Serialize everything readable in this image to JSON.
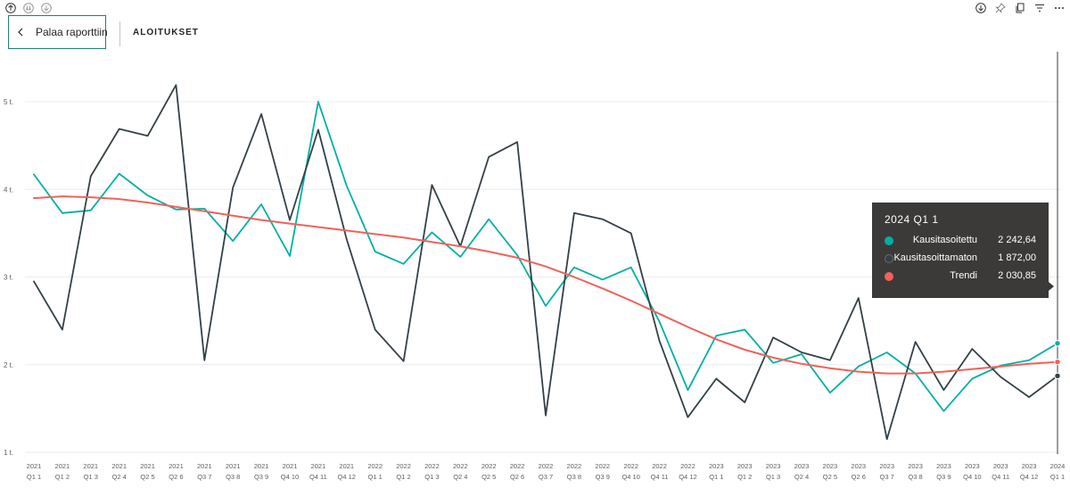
{
  "header": {
    "back_label": "Palaa raporttiin",
    "title": "ALOITUKSET"
  },
  "toolbar_icons": [
    "up-arrow-icon",
    "drill-down-icon",
    "expand-hierarchy-icon",
    "download-icon",
    "pin-icon",
    "copy-icon",
    "filter-icon",
    "more-icon"
  ],
  "tooltip": {
    "title": "2024 Q1 1",
    "rows": [
      {
        "name": "Kausitasoitettu",
        "value": "2 242,64",
        "color": "#00b0a3"
      },
      {
        "name": "Kausitasoittamaton",
        "value": "1 872,00",
        "color": "#334148"
      },
      {
        "name": "Trendi",
        "value": "2 030,85",
        "color": "#f0625b"
      }
    ]
  },
  "chart_data": {
    "type": "line",
    "title": "",
    "xlabel": "",
    "ylabel": "",
    "ylim": [
      1000,
      5300
    ],
    "y_ticks": [
      1000,
      2000,
      3000,
      4000,
      5000
    ],
    "y_tick_labels": [
      "1 t.",
      "2 t.",
      "3 t.",
      "4 t.",
      "5 t."
    ],
    "grid": true,
    "x": [
      [
        "2021",
        "Q1 1"
      ],
      [
        "2021",
        "Q1 2"
      ],
      [
        "2021",
        "Q1 3"
      ],
      [
        "2021",
        "Q2 4"
      ],
      [
        "2021",
        "Q2 5"
      ],
      [
        "2021",
        "Q2 6"
      ],
      [
        "2021",
        "Q3 7"
      ],
      [
        "2021",
        "Q3 8"
      ],
      [
        "2021",
        "Q3 9"
      ],
      [
        "2021",
        "Q4 10"
      ],
      [
        "2021",
        "Q4 11"
      ],
      [
        "2021",
        "Q4 12"
      ],
      [
        "2022",
        "Q1 1"
      ],
      [
        "2022",
        "Q1 2"
      ],
      [
        "2022",
        "Q1 3"
      ],
      [
        "2022",
        "Q2 4"
      ],
      [
        "2022",
        "Q2 5"
      ],
      [
        "2022",
        "Q2 6"
      ],
      [
        "2022",
        "Q3 7"
      ],
      [
        "2022",
        "Q3 8"
      ],
      [
        "2022",
        "Q3 9"
      ],
      [
        "2022",
        "Q4 10"
      ],
      [
        "2022",
        "Q4 11"
      ],
      [
        "2022",
        "Q4 12"
      ],
      [
        "2023",
        "Q1 1"
      ],
      [
        "2023",
        "Q1 2"
      ],
      [
        "2023",
        "Q1 3"
      ],
      [
        "2023",
        "Q2 4"
      ],
      [
        "2023",
        "Q2 5"
      ],
      [
        "2023",
        "Q2 6"
      ],
      [
        "2023",
        "Q3 7"
      ],
      [
        "2023",
        "Q3 8"
      ],
      [
        "2023",
        "Q3 9"
      ],
      [
        "2023",
        "Q4 10"
      ],
      [
        "2023",
        "Q4 11"
      ],
      [
        "2023",
        "Q4 12"
      ],
      [
        "2024",
        "Q1 1"
      ]
    ],
    "series": [
      {
        "name": "Kausitasoitettu",
        "color": "#00b0a3",
        "values": [
          4170,
          3730,
          3760,
          4180,
          3930,
          3770,
          3780,
          3410,
          3830,
          3240,
          5000,
          4040,
          3290,
          3150,
          3510,
          3230,
          3660,
          3250,
          2670,
          3110,
          2970,
          3110,
          2490,
          1710,
          2330,
          2400,
          2020,
          2120,
          1680,
          1980,
          2140,
          1900,
          1470,
          1840,
          1990,
          2050,
          2243
        ]
      },
      {
        "name": "Kausitasoittamaton",
        "color": "#334148",
        "values": [
          2950,
          2400,
          4150,
          4690,
          4610,
          5190,
          2050,
          4020,
          4860,
          3650,
          4680,
          3430,
          2400,
          2040,
          4050,
          3350,
          4370,
          4540,
          1420,
          3730,
          3660,
          3500,
          2270,
          1400,
          1840,
          1570,
          2310,
          2140,
          2050,
          2760,
          1150,
          2260,
          1710,
          2180,
          1860,
          1630,
          1872
        ]
      },
      {
        "name": "Trendi",
        "color": "#f0625b",
        "values": [
          3900,
          3920,
          3910,
          3890,
          3850,
          3800,
          3750,
          3700,
          3650,
          3610,
          3570,
          3530,
          3490,
          3450,
          3400,
          3350,
          3290,
          3220,
          3120,
          3000,
          2870,
          2730,
          2580,
          2430,
          2290,
          2170,
          2080,
          2010,
          1960,
          1920,
          1900,
          1900,
          1920,
          1950,
          1980,
          2010,
          2031
        ]
      }
    ]
  }
}
